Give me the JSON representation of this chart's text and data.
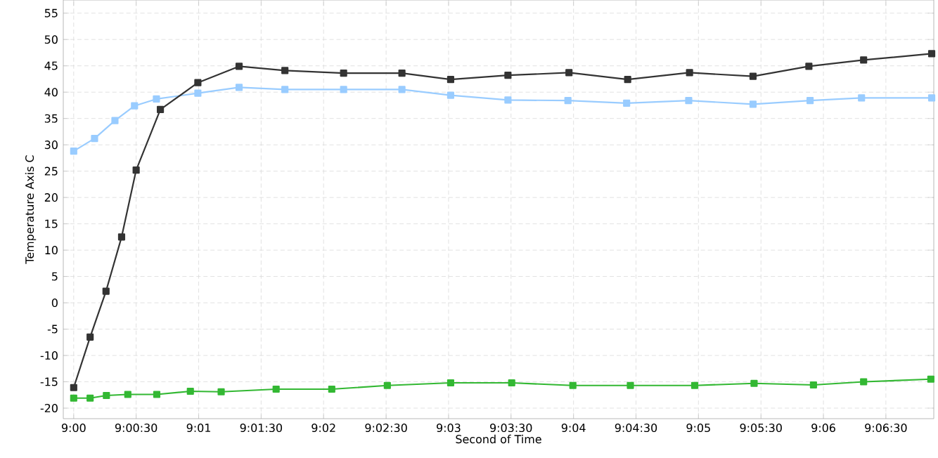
{
  "chart_data": {
    "type": "line",
    "xlabel": "Second of Time",
    "ylabel": "Temperature Axis C",
    "grid": true,
    "marker": "square",
    "line_style": "solid",
    "xlim": [
      8.99861,
      9.11472
    ],
    "ylim": [
      -22,
      57.5
    ],
    "xticks": [
      {
        "value": 9,
        "label": "9:00"
      },
      {
        "value": 9.00833,
        "label": "9:00:30"
      },
      {
        "value": 9.01667,
        "label": "9:01"
      },
      {
        "value": 9.025,
        "label": "9:01:30"
      },
      {
        "value": 9.03333,
        "label": "9:02"
      },
      {
        "value": 9.04167,
        "label": "9:02:30"
      },
      {
        "value": 9.05,
        "label": "9:03"
      },
      {
        "value": 9.05833,
        "label": "9:03:30"
      },
      {
        "value": 9.06667,
        "label": "9:04"
      },
      {
        "value": 9.075,
        "label": "9:04:30"
      },
      {
        "value": 9.08333,
        "label": "9:05"
      },
      {
        "value": 9.09167,
        "label": "9:05:30"
      },
      {
        "value": 9.1,
        "label": "9:06"
      },
      {
        "value": 9.10833,
        "label": "9:06:30"
      }
    ],
    "yticks": [
      -20,
      -15,
      -10,
      -5,
      0,
      5,
      10,
      15,
      20,
      25,
      30,
      35,
      40,
      45,
      50,
      55
    ],
    "series": [
      {
        "color": "#99ccff",
        "x": [
          9,
          9.00278,
          9.0055,
          9.00811,
          9.01103,
          9.01656,
          9.02206,
          9.02817,
          9.036,
          9.04378,
          9.05028,
          9.05792,
          9.06592,
          9.07375,
          9.08203,
          9.09061,
          9.09822,
          9.10508,
          9.11444
        ],
        "values": [
          28.8,
          31.2,
          34.6,
          37.4,
          38.7,
          39.8,
          40.9,
          40.5,
          40.5,
          40.5,
          39.4,
          38.5,
          38.4,
          37.9,
          38.4,
          37.7,
          38.4,
          38.9,
          38.9
        ]
      },
      {
        "color": "#33b833",
        "x": [
          9,
          9.00219,
          9.00436,
          9.00722,
          9.01108,
          9.01556,
          9.01967,
          9.027,
          9.03442,
          9.04183,
          9.05028,
          9.05842,
          9.06658,
          9.07425,
          9.08283,
          9.09075,
          9.09867,
          9.10536,
          9.11433
        ],
        "values": [
          -18.1,
          -18.1,
          -17.6,
          -17.4,
          -17.4,
          -16.8,
          -16.9,
          -16.4,
          -16.4,
          -15.7,
          -15.2,
          -15.2,
          -15.7,
          -15.7,
          -15.7,
          -15.3,
          -15.6,
          -15.0,
          -14.5
        ]
      },
      {
        "color": "#333333",
        "x": [
          9,
          9.00219,
          9.00431,
          9.00639,
          9.00833,
          9.01156,
          9.01656,
          9.02206,
          9.02817,
          9.036,
          9.04378,
          9.05028,
          9.05792,
          9.06606,
          9.07389,
          9.08214,
          9.09061,
          9.09806,
          9.10536,
          9.11444
        ],
        "values": [
          -16.1,
          -6.5,
          2.2,
          12.5,
          25.2,
          36.7,
          41.8,
          44.9,
          44.1,
          43.6,
          43.6,
          42.4,
          43.2,
          43.7,
          42.4,
          43.7,
          43.0,
          44.9,
          46.1,
          47.3
        ]
      }
    ]
  }
}
